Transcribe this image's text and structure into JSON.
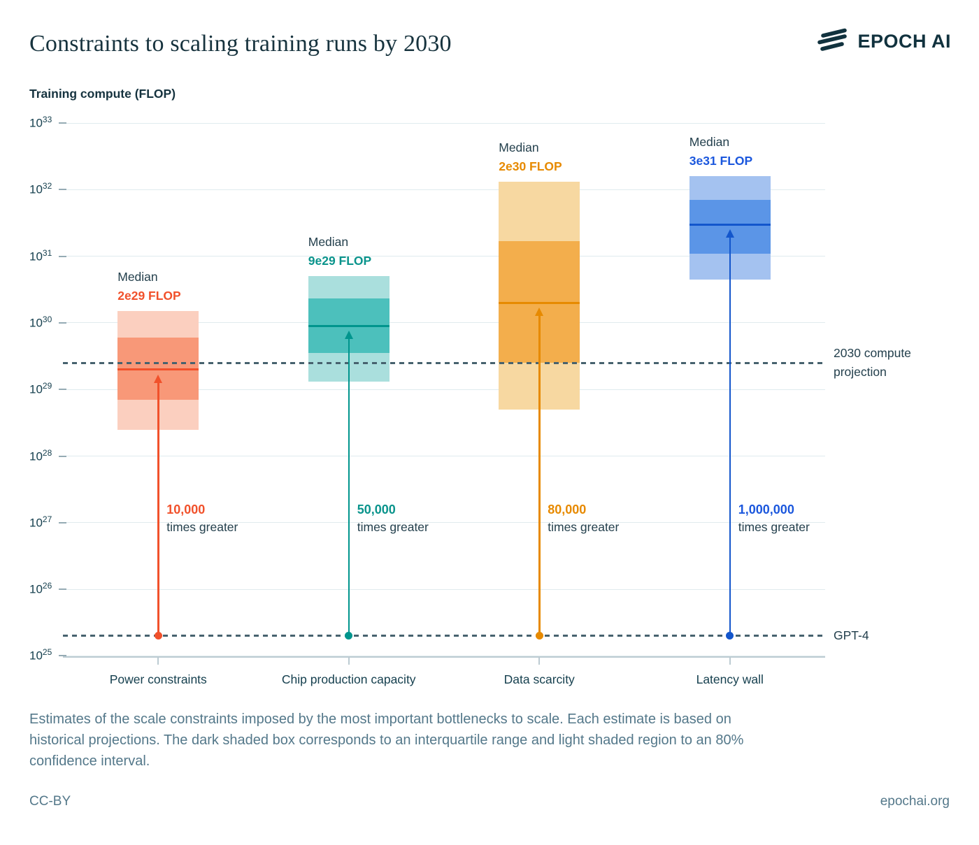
{
  "header": {
    "brand": "EPOCH AI"
  },
  "chart_data": {
    "type": "box",
    "title": "Constraints to scaling training runs by 2030",
    "ylabel": "Training compute (FLOP)",
    "yscale": "log",
    "ylim": [
      1e+25,
      1e+33
    ],
    "yticks": [
      33,
      32,
      31,
      30,
      29,
      28,
      27,
      26,
      25
    ],
    "ytick_base": "10",
    "grid": true,
    "median_word": "Median",
    "categories": [
      "Power constraints",
      "Chip production capacity",
      "Data scarcity",
      "Latency wall"
    ],
    "series": [
      {
        "name": "Power constraints",
        "median": 2e+29,
        "median_label": "2e29 FLOP",
        "iqr": [
          7e+28,
          6e+29
        ],
        "ci80": [
          2.5e+28,
          1.5e+30
        ],
        "multiplier": "10,000",
        "multiplier_suffix": "times greater",
        "colors": {
          "light": "#fbcfbf",
          "dark": "#f89878",
          "line": "#f1512b",
          "text": "#f1512b"
        }
      },
      {
        "name": "Chip production capacity",
        "median": 9e+29,
        "median_label": "9e29 FLOP",
        "iqr": [
          3.5e+29,
          2.3e+30
        ],
        "ci80": [
          1.3e+29,
          5e+30
        ],
        "multiplier": "50,000",
        "multiplier_suffix": "times greater",
        "colors": {
          "light": "#aadfdd",
          "dark": "#4cc0bc",
          "line": "#00958d",
          "text": "#0a948c"
        }
      },
      {
        "name": "Data scarcity",
        "median": 2e+30,
        "median_label": "2e30 FLOP",
        "iqr": [
          2.5e+29,
          1.7e+31
        ],
        "ci80": [
          5e+28,
          1.3e+32
        ],
        "multiplier": "80,000",
        "multiplier_suffix": "times greater",
        "colors": {
          "light": "#f7d8a1",
          "dark": "#f3ae4c",
          "line": "#e78a00",
          "text": "#e78a00"
        }
      },
      {
        "name": "Latency wall",
        "median": 3e+31,
        "median_label": "3e31 FLOP",
        "iqr": [
          1.1e+31,
          7e+31
        ],
        "ci80": [
          4.5e+30,
          1.6e+32
        ],
        "multiplier": "1,000,000",
        "multiplier_suffix": "times greater",
        "colors": {
          "light": "#a4c2f0",
          "dark": "#5b95e7",
          "line": "#1356cc",
          "text": "#1b57dd"
        }
      }
    ],
    "reference_lines": [
      {
        "label": "2030 compute\nprojection",
        "value": 2.5e+29
      },
      {
        "label": "GPT-4",
        "value": 2e+25
      }
    ]
  },
  "caption": {
    "lines": [
      "Estimates of the scale constraints imposed by the most important bottlenecks to scale. Each estimate is based on",
      "historical projections. The dark shaded box corresponds to an interquartile range and light shaded region to an 80%",
      "confidence interval."
    ]
  },
  "footer": {
    "license": "CC-BY",
    "site": "epochai.org"
  }
}
